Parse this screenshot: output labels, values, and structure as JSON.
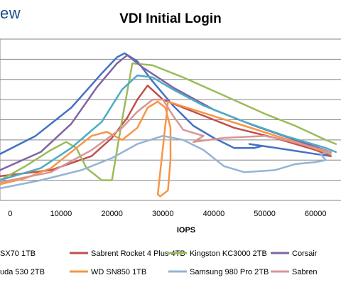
{
  "brand": "ew",
  "chart_data": {
    "type": "line",
    "title": "VDI Initial Login",
    "xlabel": "IOPS",
    "ylabel": "",
    "xlim": [
      -2000,
      65000
    ],
    "x_ticks": [
      "0",
      "10000",
      "20000",
      "30000",
      "40000",
      "50000",
      "60000"
    ],
    "x_tick_values": [
      0,
      10000,
      20000,
      30000,
      40000,
      50000,
      60000
    ],
    "ylim": [
      0,
      8
    ],
    "grid": "horizontal",
    "legend_position": "bottom",
    "series": [
      {
        "name": "SX70 1TB",
        "color": "#4472c4",
        "points": [
          [
            -2000,
            2.3
          ],
          [
            5000,
            3.2
          ],
          [
            12000,
            4.6
          ],
          [
            18000,
            6.3
          ],
          [
            21000,
            7.1
          ],
          [
            22500,
            7.3
          ],
          [
            25000,
            6.9
          ],
          [
            28000,
            5.9
          ],
          [
            32000,
            4.7
          ],
          [
            36000,
            3.7
          ],
          [
            40000,
            3.1
          ],
          [
            44000,
            2.6
          ],
          [
            48000,
            2.6
          ],
          [
            49500,
            2.7
          ],
          [
            47000,
            2.8
          ],
          [
            55000,
            2.5
          ],
          [
            60000,
            2.3
          ],
          [
            63000,
            2.2
          ]
        ]
      },
      {
        "name": "Sabrent Rocket 4 Plus 4TB",
        "color": "#c0504d",
        "points": [
          [
            -2000,
            1.2
          ],
          [
            8000,
            1.5
          ],
          [
            16000,
            2.2
          ],
          [
            20000,
            3.1
          ],
          [
            23000,
            4.1
          ],
          [
            25000,
            5.0
          ],
          [
            27000,
            5.7
          ],
          [
            30000,
            5.0
          ],
          [
            36000,
            4.4
          ],
          [
            44000,
            3.6
          ],
          [
            52000,
            3.1
          ],
          [
            60000,
            2.5
          ],
          [
            63000,
            2.2
          ]
        ]
      },
      {
        "name": "Kingston KC3000 2TB",
        "color": "#9bbb59",
        "points": [
          [
            -2000,
            1.0
          ],
          [
            3000,
            1.7
          ],
          [
            8000,
            2.5
          ],
          [
            11000,
            2.9
          ],
          [
            13000,
            2.6
          ],
          [
            15000,
            1.6
          ],
          [
            18000,
            1.0
          ],
          [
            20000,
            1.0
          ],
          [
            22000,
            4.0
          ],
          [
            24000,
            6.8
          ],
          [
            28000,
            6.7
          ],
          [
            34000,
            6.1
          ],
          [
            42000,
            5.2
          ],
          [
            50000,
            4.3
          ],
          [
            56000,
            3.7
          ],
          [
            62000,
            3.0
          ],
          [
            64000,
            2.8
          ]
        ]
      },
      {
        "name": "Corsair",
        "color": "#8064a2",
        "points": [
          [
            -2000,
            1.5
          ],
          [
            6000,
            2.4
          ],
          [
            12000,
            3.8
          ],
          [
            17000,
            5.6
          ],
          [
            21000,
            6.8
          ],
          [
            23000,
            7.2
          ],
          [
            26000,
            6.6
          ],
          [
            32000,
            5.6
          ],
          [
            40000,
            4.5
          ],
          [
            48000,
            3.7
          ],
          [
            56000,
            3.0
          ],
          [
            63000,
            2.4
          ]
        ]
      },
      {
        "name": "uda 530 2TB",
        "color": "#4bacc6",
        "points": [
          [
            -2000,
            1.0
          ],
          [
            6000,
            1.6
          ],
          [
            12000,
            2.6
          ],
          [
            18000,
            3.9
          ],
          [
            22000,
            5.5
          ],
          [
            25000,
            6.2
          ],
          [
            28000,
            6.1
          ],
          [
            32000,
            5.5
          ],
          [
            38000,
            4.7
          ],
          [
            46000,
            3.9
          ],
          [
            54000,
            3.2
          ],
          [
            62000,
            2.6
          ],
          [
            64000,
            2.4
          ]
        ]
      },
      {
        "name": "WD SN850 1TB",
        "color": "#f79646",
        "points": [
          [
            -2000,
            0.8
          ],
          [
            3000,
            1.1
          ],
          [
            8000,
            1.6
          ],
          [
            13000,
            2.6
          ],
          [
            16000,
            3.2
          ],
          [
            19000,
            3.4
          ],
          [
            22000,
            3.0
          ],
          [
            25000,
            3.6
          ],
          [
            27000,
            4.6
          ],
          [
            29000,
            4.9
          ],
          [
            30500,
            4.6
          ],
          [
            31500,
            3.6
          ],
          [
            31500,
            2.0
          ],
          [
            31000,
            0.5
          ],
          [
            29500,
            0.2
          ],
          [
            29000,
            0.3
          ],
          [
            31000,
            4.9
          ],
          [
            36000,
            4.5
          ],
          [
            46000,
            3.7
          ],
          [
            56000,
            2.9
          ],
          [
            63000,
            2.3
          ]
        ]
      },
      {
        "name": "Samsung 980 Pro 2TB",
        "color": "#95b3d7",
        "points": [
          [
            -2000,
            0.6
          ],
          [
            6000,
            1.0
          ],
          [
            14000,
            1.5
          ],
          [
            20000,
            2.1
          ],
          [
            25000,
            2.8
          ],
          [
            30000,
            3.2
          ],
          [
            34000,
            3.0
          ],
          [
            38000,
            2.5
          ],
          [
            42000,
            1.7
          ],
          [
            46000,
            1.4
          ],
          [
            52000,
            1.5
          ],
          [
            56000,
            1.8
          ],
          [
            60000,
            1.9
          ],
          [
            62000,
            2.0
          ],
          [
            61000,
            2.3
          ],
          [
            63000,
            2.4
          ]
        ]
      },
      {
        "name": "Sabren",
        "color": "#d99694",
        "points": [
          [
            -2000,
            0.9
          ],
          [
            8000,
            1.4
          ],
          [
            16000,
            2.5
          ],
          [
            22000,
            3.6
          ],
          [
            25000,
            4.4
          ],
          [
            28000,
            5.0
          ],
          [
            30000,
            5.0
          ],
          [
            32000,
            4.2
          ],
          [
            34000,
            3.5
          ],
          [
            38000,
            3.2
          ],
          [
            36000,
            2.9
          ],
          [
            42000,
            3.1
          ],
          [
            50000,
            3.2
          ],
          [
            54000,
            3.0
          ],
          [
            60000,
            2.6
          ],
          [
            63000,
            2.4
          ]
        ]
      }
    ]
  }
}
